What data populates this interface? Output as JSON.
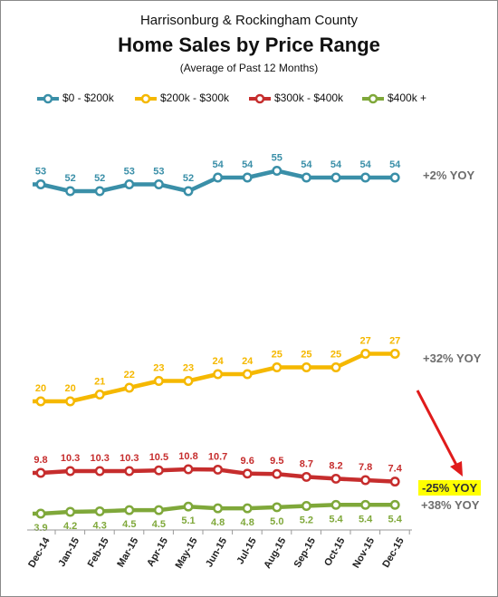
{
  "header": {
    "region": "Harrisonburg & Rockingham County",
    "title": "Home Sales by Price Range",
    "subtitle": "(Average of Past 12 Months)"
  },
  "yoy": {
    "s0": "+2% YOY",
    "s1": "+32% YOY",
    "s2": "-25% YOY",
    "s3": "+38% YOY"
  },
  "colors": {
    "s0": "#3a8fa8",
    "s1": "#f5b800",
    "s2": "#c62d2d",
    "s3": "#7fa83a",
    "arrow": "#e01b1b",
    "highlight": "#ffff00"
  },
  "chart_data": {
    "type": "line",
    "title": "Home Sales by Price Range",
    "subtitle": "(Average of Past 12 Months)",
    "categories": [
      "Dec-14",
      "Jan-15",
      "Feb-15",
      "Mar-15",
      "Apr-15",
      "May-15",
      "Jun-15",
      "Jul-15",
      "Aug-15",
      "Sep-15",
      "Oct-15",
      "Nov-15",
      "Dec-15"
    ],
    "legend_position": "top",
    "grid": false,
    "series": [
      {
        "name": "$0 - $200k",
        "values": [
          53,
          52,
          52,
          53,
          53,
          52,
          54,
          54,
          55,
          54,
          54,
          54,
          54
        ],
        "labels": [
          "53",
          "52",
          "52",
          "53",
          "53",
          "52",
          "54",
          "54",
          "55",
          "54",
          "54",
          "54",
          "54"
        ]
      },
      {
        "name": "$200k - $300k",
        "values": [
          20,
          20,
          21,
          22,
          23,
          23,
          24,
          24,
          25,
          25,
          25,
          27,
          27
        ],
        "labels": [
          "20",
          "20",
          "21",
          "22",
          "23",
          "23",
          "24",
          "24",
          "25",
          "25",
          "25",
          "27",
          "27"
        ]
      },
      {
        "name": "$300k - $400k",
        "values": [
          9.8,
          10.3,
          10.3,
          10.3,
          10.5,
          10.8,
          10.7,
          9.6,
          9.5,
          8.7,
          8.2,
          7.8,
          7.4
        ],
        "labels": [
          "9.8",
          "10.3",
          "10.3",
          "10.3",
          "10.5",
          "10.8",
          "10.7",
          "9.6",
          "9.5",
          "8.7",
          "8.2",
          "7.8",
          "7.4"
        ]
      },
      {
        "name": "$400k +",
        "values": [
          3.9,
          4.2,
          4.3,
          4.5,
          4.5,
          5.1,
          4.8,
          4.8,
          5.0,
          5.2,
          5.4,
          5.4,
          5.4
        ],
        "labels": [
          "3.9",
          "4.2",
          "4.3",
          "4.5",
          "4.5",
          "5.1",
          "4.8",
          "4.8",
          "5.0",
          "5.2",
          "5.4",
          "5.4",
          "5.4"
        ]
      }
    ]
  }
}
